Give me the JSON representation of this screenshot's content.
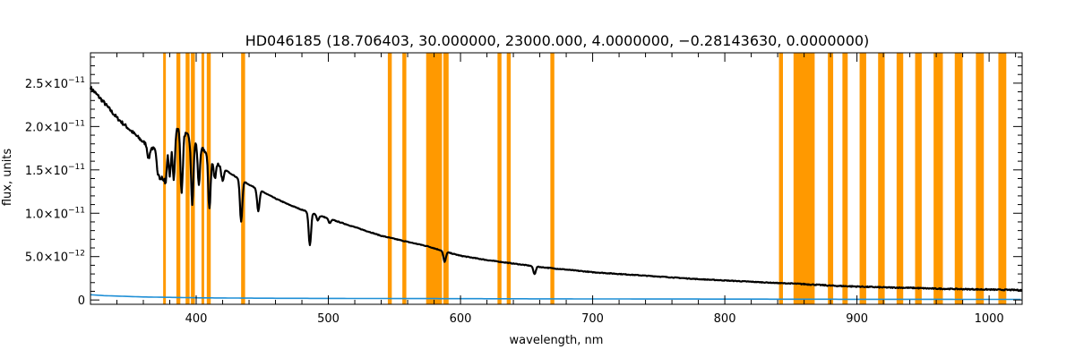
{
  "chart_data": {
    "type": "line",
    "title": "HD046185   (18.706403, 30.000000, 23000.000, 4.0000000, −0.28143630, 0.0000000)",
    "xlabel": "wavelength, nm",
    "ylabel": "flux, units",
    "xlim": [
      320,
      1025
    ],
    "ylim": [
      -5e-13,
      2.85e-11
    ],
    "x_ticks": [
      {
        "value": 400,
        "label": "400"
      },
      {
        "value": 500,
        "label": "500"
      },
      {
        "value": 600,
        "label": "600"
      },
      {
        "value": 700,
        "label": "700"
      },
      {
        "value": 800,
        "label": "800"
      },
      {
        "value": 900,
        "label": "900"
      },
      {
        "value": 1000,
        "label": "1000"
      }
    ],
    "y_ticks": [
      {
        "value": 0,
        "label": "0",
        "exp": ""
      },
      {
        "value": 5e-12,
        "label": "5.0×10",
        "exp": "−12"
      },
      {
        "value": 1e-11,
        "label": "1.0×10",
        "exp": "−11"
      },
      {
        "value": 1.5e-11,
        "label": "1.5×10",
        "exp": "−11"
      },
      {
        "value": 2e-11,
        "label": "2.0×10",
        "exp": "−11"
      },
      {
        "value": 2.5e-11,
        "label": "2.5×10",
        "exp": "−11"
      }
    ],
    "grid": false,
    "colors": {
      "flux": "#000000",
      "error": "#1f8fd6",
      "mask": "#ff9900",
      "axes": "#000000"
    },
    "masked_ranges": [
      [
        375,
        377
      ],
      [
        385,
        388
      ],
      [
        392,
        395
      ],
      [
        396,
        399
      ],
      [
        404,
        406
      ],
      [
        408,
        411
      ],
      [
        434,
        437
      ],
      [
        545,
        548
      ],
      [
        556,
        559
      ],
      [
        574,
        586
      ],
      [
        587,
        591
      ],
      [
        628,
        631
      ],
      [
        635,
        638
      ],
      [
        668,
        671
      ],
      [
        841,
        844
      ],
      [
        852,
        868
      ],
      [
        878,
        882
      ],
      [
        889,
        893
      ],
      [
        902,
        907
      ],
      [
        916,
        921
      ],
      [
        930,
        935
      ],
      [
        944,
        949
      ],
      [
        958,
        965
      ],
      [
        974,
        980
      ],
      [
        990,
        996
      ],
      [
        1007,
        1013
      ]
    ],
    "series": [
      {
        "x": [
          320,
          330,
          340,
          350,
          360,
          370,
          380,
          385,
          390,
          395,
          400,
          410,
          420,
          430,
          440,
          450,
          460,
          470,
          480,
          490,
          500,
          520,
          540,
          560,
          575,
          590,
          600,
          620,
          640,
          660,
          680,
          700,
          720,
          740,
          760,
          780,
          800,
          820,
          840,
          850,
          870,
          880,
          900,
          920,
          940,
          960,
          980,
          1000,
          1020,
          1025
        ],
        "values": [
          2.45e-11,
          2.28e-11,
          2.1e-11,
          1.96e-11,
          1.82e-11,
          1.72e-11,
          1.97e-11,
          1.99e-11,
          1.94e-11,
          1.88e-11,
          1.82e-11,
          1.66e-11,
          1.52e-11,
          1.42e-11,
          1.33e-11,
          1.25e-11,
          1.17e-11,
          1.1e-11,
          1.04e-11,
          9.9e-12,
          9.4e-12,
          8.4e-12,
          7.4e-12,
          6.7e-12,
          6.2e-12,
          5.5e-12,
          5.1e-12,
          4.6e-12,
          4.2e-12,
          3.8e-12,
          3.5e-12,
          3.2e-12,
          3e-12,
          2.8e-12,
          2.6e-12,
          2.4e-12,
          2.25e-12,
          2.1e-12,
          1.95e-12,
          1.9e-12,
          1.75e-12,
          1.65e-12,
          1.55e-12,
          1.45e-12,
          1.4e-12,
          1.3e-12,
          1.25e-12,
          1.2e-12,
          1.15e-12,
          1.15e-12
        ]
      },
      {
        "x": [
          320,
          330,
          340,
          350,
          360,
          380,
          400,
          450,
          500,
          600,
          700,
          800,
          900,
          1000,
          1025
        ],
        "values": [
          6e-13,
          5e-13,
          4.5e-13,
          4e-13,
          3.5e-13,
          3e-13,
          2.5e-13,
          2e-13,
          1.8e-13,
          1.5e-13,
          1.2e-13,
          1e-13,
          8e-14,
          7e-14,
          7e-14
        ]
      }
    ],
    "absorption_lines": [
      {
        "x": 364,
        "depth": 1.5e-12
      },
      {
        "x": 371,
        "depth": 2.5e-12
      },
      {
        "x": 373,
        "depth": 3.5e-12
      },
      {
        "x": 375,
        "depth": 4e-12
      },
      {
        "x": 377,
        "depth": 5e-12
      },
      {
        "x": 380,
        "depth": 5.5e-12
      },
      {
        "x": 383,
        "depth": 6e-12
      },
      {
        "x": 389,
        "depth": 7e-12
      },
      {
        "x": 397,
        "depth": 7.5e-12
      },
      {
        "x": 402,
        "depth": 4.5e-12
      },
      {
        "x": 410,
        "depth": 6e-12
      },
      {
        "x": 414,
        "depth": 2e-12
      },
      {
        "x": 420,
        "depth": 1.5e-12
      },
      {
        "x": 434,
        "depth": 4.8e-12
      },
      {
        "x": 447,
        "depth": 2.5e-12
      },
      {
        "x": 486,
        "depth": 3.8e-12
      },
      {
        "x": 492,
        "depth": 6e-13
      },
      {
        "x": 501,
        "depth": 5e-13
      },
      {
        "x": 588,
        "depth": 1.2e-12
      },
      {
        "x": 656,
        "depth": 9e-13
      }
    ]
  }
}
